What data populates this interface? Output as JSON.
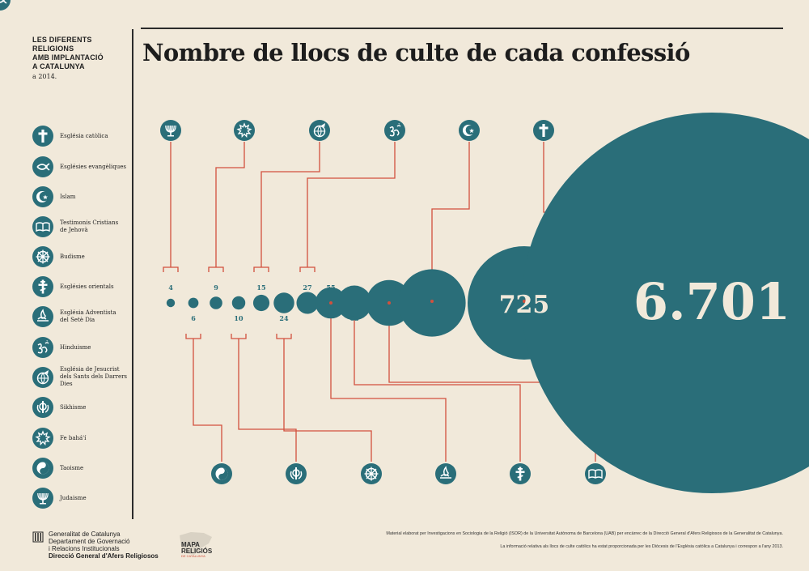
{
  "header": {
    "sidebar_title": [
      "LES DIFERENTS RELIGIONS",
      "AMB IMPLANTACIÓ",
      "A CATALUNYA"
    ],
    "sidebar_year": "a 2014.",
    "title": "Nombre de llocs de culte de cada confessió"
  },
  "colors": {
    "circle": "#2a6e79",
    "connector": "#d2503d",
    "background": "#f1e9da",
    "label": "#2a6e79"
  },
  "legend": [
    {
      "icon": "latin-cross-icon",
      "label": [
        "Església catòlica"
      ]
    },
    {
      "icon": "ichthys-fish-icon",
      "label": [
        "Esglésies evangèliques"
      ]
    },
    {
      "icon": "crescent-star-icon",
      "label": [
        "Islam"
      ]
    },
    {
      "icon": "open-book-icon",
      "label": [
        "Testimonis Cristians",
        "de Jehovà"
      ]
    },
    {
      "icon": "dharma-wheel-icon",
      "label": [
        "Budisme"
      ]
    },
    {
      "icon": "orthodox-cross-icon",
      "label": [
        "Esglésies orientals"
      ]
    },
    {
      "icon": "adventist-flame-icon",
      "label": [
        "Església Adventista",
        "del Setè Dia"
      ]
    },
    {
      "icon": "om-icon",
      "label": [
        "Hinduisme"
      ]
    },
    {
      "icon": "globe-angel-icon",
      "label": [
        "Església de Jesucrist",
        "dels Sants dels Darrers Dies"
      ]
    },
    {
      "icon": "khanda-icon",
      "label": [
        "Sikhisme"
      ]
    },
    {
      "icon": "baha-star-icon",
      "label": [
        "Fe bahá'í"
      ]
    },
    {
      "icon": "yin-yang-icon",
      "label": [
        "Taoisme"
      ]
    },
    {
      "icon": "menorah-icon",
      "label": [
        "Judaisme"
      ]
    }
  ],
  "chart_data": {
    "type": "bubble",
    "title": "Nombre de llocs de culte de cada confessió",
    "categories": [
      "Judaisme",
      "Taoisme",
      "Fe bahá'í",
      "Sikhisme",
      "Església de Jesucrist dels Sants dels Darrers Dies",
      "Budisme",
      "Hinduisme",
      "Església Adventista del Setè Dia",
      "Esglésies orientals",
      "Testimonis Cristians de Jehovà",
      "Islam",
      "Esglésies evangèliques",
      "Església catòlica"
    ],
    "values": [
      4,
      6,
      9,
      10,
      15,
      24,
      27,
      55,
      68,
      118,
      256,
      725,
      6701
    ],
    "value_labels": [
      "4",
      "6",
      "9",
      "10",
      "15",
      "24",
      "27",
      "55",
      "68",
      "118",
      "256",
      "725",
      "6.701"
    ],
    "icons": [
      "menorah-icon",
      "yin-yang-icon",
      "baha-star-icon",
      "khanda-icon",
      "globe-angel-icon",
      "dharma-wheel-icon",
      "om-icon",
      "adventist-flame-icon",
      "orthodox-cross-icon",
      "open-book-icon",
      "crescent-star-icon",
      "ichthys-fish-icon",
      "latin-cross-icon"
    ],
    "icon_row": [
      "top",
      "bottom",
      "top",
      "bottom",
      "top",
      "bottom",
      "top",
      "bottom",
      "bottom",
      "bottom",
      "top",
      "bottom",
      "top"
    ],
    "label_position": [
      "above",
      "below",
      "above",
      "below",
      "above",
      "below",
      "above",
      "above",
      "below",
      "above",
      "below",
      "inside",
      "inside"
    ]
  },
  "footer": {
    "institution": [
      "Generalitat de Catalunya",
      "Departament de Governació",
      "i Relacions Institucionals",
      "Direcció General d'Afers Religiosos"
    ],
    "logo_title": [
      "MAPA",
      "RELIGIÓS"
    ],
    "logo_subtitle": "DE CATALUNYA",
    "note1": "Material elaborat per Investigacions en Sociologia de la Religió (ISOR) de la Universitat Autònoma de Barcelona (UAB) per encàrrec de la Direcció General d'Afers Religiosos de la Generalitat de Catalunya.",
    "note2": "La informació relativa als llocs de culte catòlics ha estat proporcionada per les Diòcesis de l'Església catòlica a Catalunya i correspon a l'any 2013."
  }
}
